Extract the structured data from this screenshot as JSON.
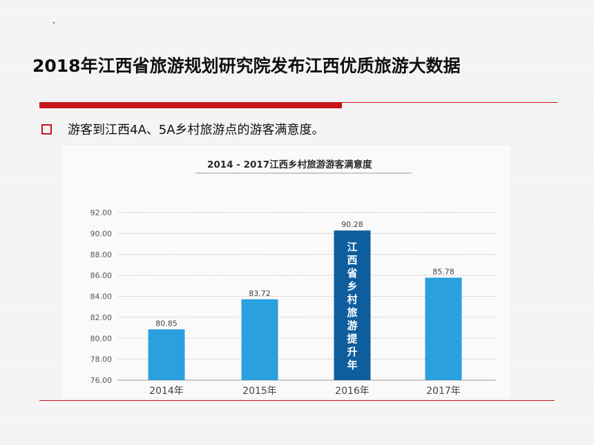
{
  "slide": {
    "title": "2018年江西省旅游规划研究院发布江西优质旅游大数据",
    "bullet": "游客到江西4A、5A乡村旅游点的游客满意度。"
  },
  "colors": {
    "accent_red": "#c8151c",
    "bar_light": "#2aa0de",
    "bar_dark": "#0e5e9e"
  },
  "chart_data": {
    "type": "bar",
    "title": "2014 - 2017江西乡村旅游游客满意度",
    "categories": [
      "2014年",
      "2015年",
      "2016年",
      "2017年"
    ],
    "values": [
      80.85,
      83.72,
      90.28,
      85.78
    ],
    "value_labels": [
      "80.85",
      "83.72",
      "90.28",
      "85.78"
    ],
    "yticks": [
      "76.00",
      "78.00",
      "80.00",
      "82.00",
      "84.00",
      "86.00",
      "88.00",
      "90.00",
      "92.00"
    ],
    "ylim": [
      76,
      92
    ],
    "grid": true,
    "highlight_index": 2,
    "highlight_label": "江西省乡村旅游提升年"
  }
}
